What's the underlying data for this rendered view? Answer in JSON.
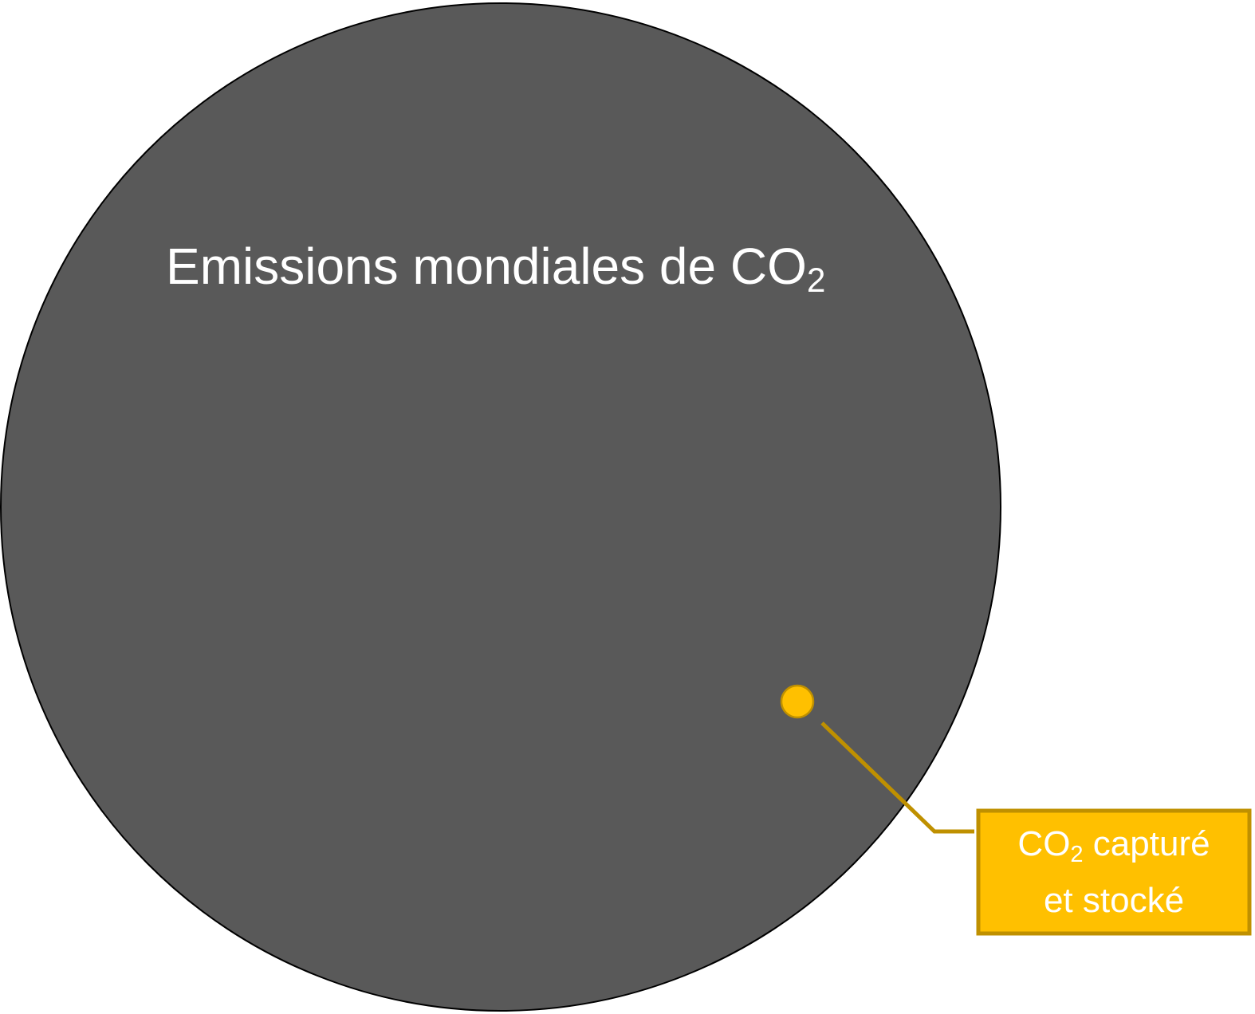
{
  "diagram": {
    "large_circle": {
      "label_text": "Emissions mondiales de CO",
      "label_subscript": "2",
      "fill": "#595959",
      "stroke": "#000000"
    },
    "small_circle": {
      "fill": "#FFC000",
      "stroke": "#BF9000"
    },
    "callout": {
      "line1_text": "CO",
      "line1_subscript": "2",
      "line1_rest": " capturé",
      "line2_text": "et stocké",
      "fill": "#FFC000",
      "stroke": "#BF9000",
      "leader_color": "#BF9000"
    }
  }
}
